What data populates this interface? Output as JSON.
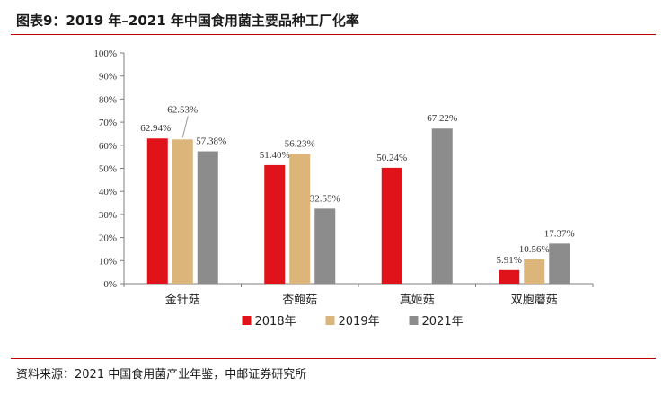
{
  "header": {
    "title": "图表9：2019 年–2021 年中国食用菌主要品种工厂化率"
  },
  "footer": {
    "source": "资料来源：2021 中国食用菌产业年鉴，中邮证券研究所"
  },
  "colors": {
    "accent_rule": "#c00000"
  },
  "chart_data": {
    "type": "bar",
    "categories": [
      "金针菇",
      "杏鲍菇",
      "真姬菇",
      "双胞蘑菇"
    ],
    "series": [
      {
        "name": "2018年",
        "color": "#e0121a",
        "values": [
          62.94,
          51.4,
          50.24,
          5.91
        ],
        "labels": [
          "62.94%",
          "51.40%",
          "50.24%",
          "5.91%"
        ]
      },
      {
        "name": "2019年",
        "color": "#dbb57a",
        "values": [
          62.53,
          56.23,
          null,
          10.56
        ],
        "labels": [
          "62.53%",
          "56.23%",
          "",
          "10.56%"
        ]
      },
      {
        "name": "2021年",
        "color": "#8c8c8c",
        "values": [
          57.38,
          32.55,
          67.22,
          17.37
        ],
        "labels": [
          "57.38%",
          "32.55%",
          "67.22%",
          "17.37%"
        ]
      }
    ],
    "ylim": [
      0,
      100
    ],
    "yticks": [
      0,
      10,
      20,
      30,
      40,
      50,
      60,
      70,
      80,
      90,
      100
    ],
    "ytick_labels": [
      "0%",
      "10%",
      "20%",
      "30%",
      "40%",
      "50%",
      "60%",
      "70%",
      "80%",
      "90%",
      "100%"
    ],
    "grid": false,
    "legend_position": "bottom-center"
  }
}
